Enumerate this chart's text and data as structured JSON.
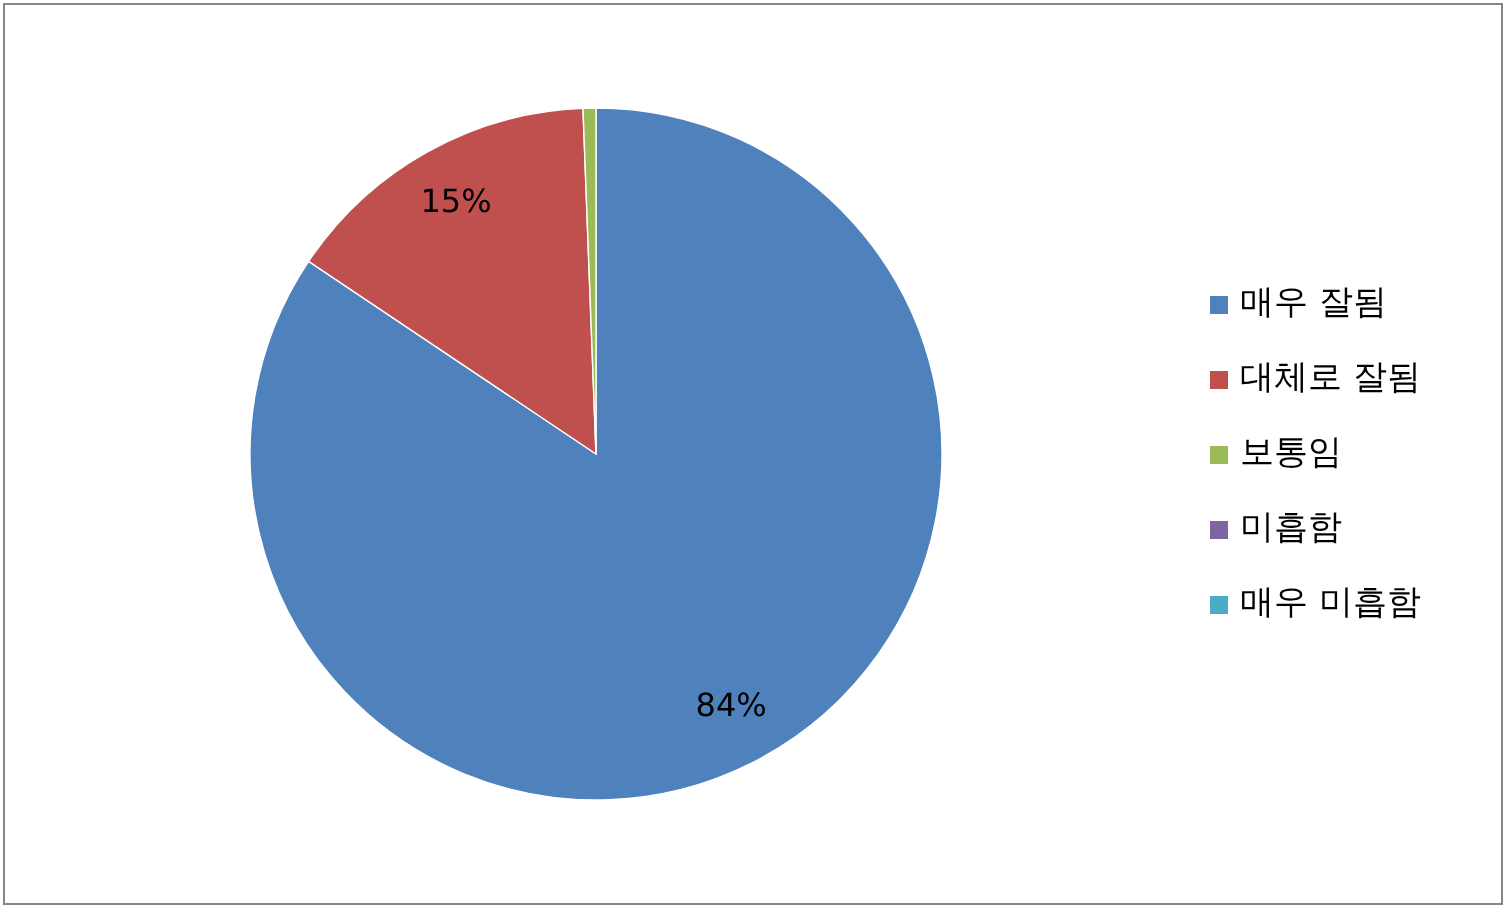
{
  "chart_data": {
    "type": "pie",
    "categories": [
      "매우 잘됨",
      "대체로 잘됨",
      "보통임",
      "미흡함",
      "매우 미흡함"
    ],
    "values": [
      84.4,
      15,
      0.6,
      0,
      0
    ],
    "colors": [
      "#4f81bd",
      "#c0504d",
      "#9bbb59",
      "#8064a2",
      "#4bacc6"
    ],
    "value_labels": [
      "84%",
      "15%",
      null,
      null,
      null
    ],
    "legend": "right"
  }
}
